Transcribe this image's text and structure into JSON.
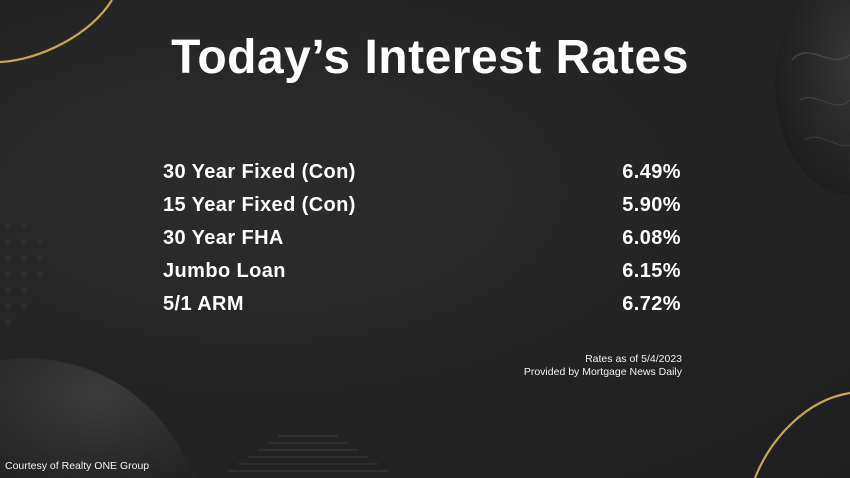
{
  "slide": {
    "title": "Today’s Interest Rates",
    "rates": [
      {
        "label": "30 Year Fixed (Con)",
        "value": "6.49%"
      },
      {
        "label": "15 Year Fixed (Con)",
        "value": "5.90%"
      },
      {
        "label": "30 Year FHA",
        "value": "6.08%"
      },
      {
        "label": "Jumbo Loan",
        "value": "6.15%"
      },
      {
        "label": "5/1 ARM",
        "value": "6.72%"
      }
    ],
    "source": {
      "as_of": "Rates as of 5/4/2023",
      "provider": "Provided by Mortgage News Daily"
    },
    "courtesy": "Courtesy of Realty ONE Group"
  },
  "colors": {
    "background": "#262626",
    "text": "#ffffff",
    "gold_accent": "#c9a55a"
  }
}
